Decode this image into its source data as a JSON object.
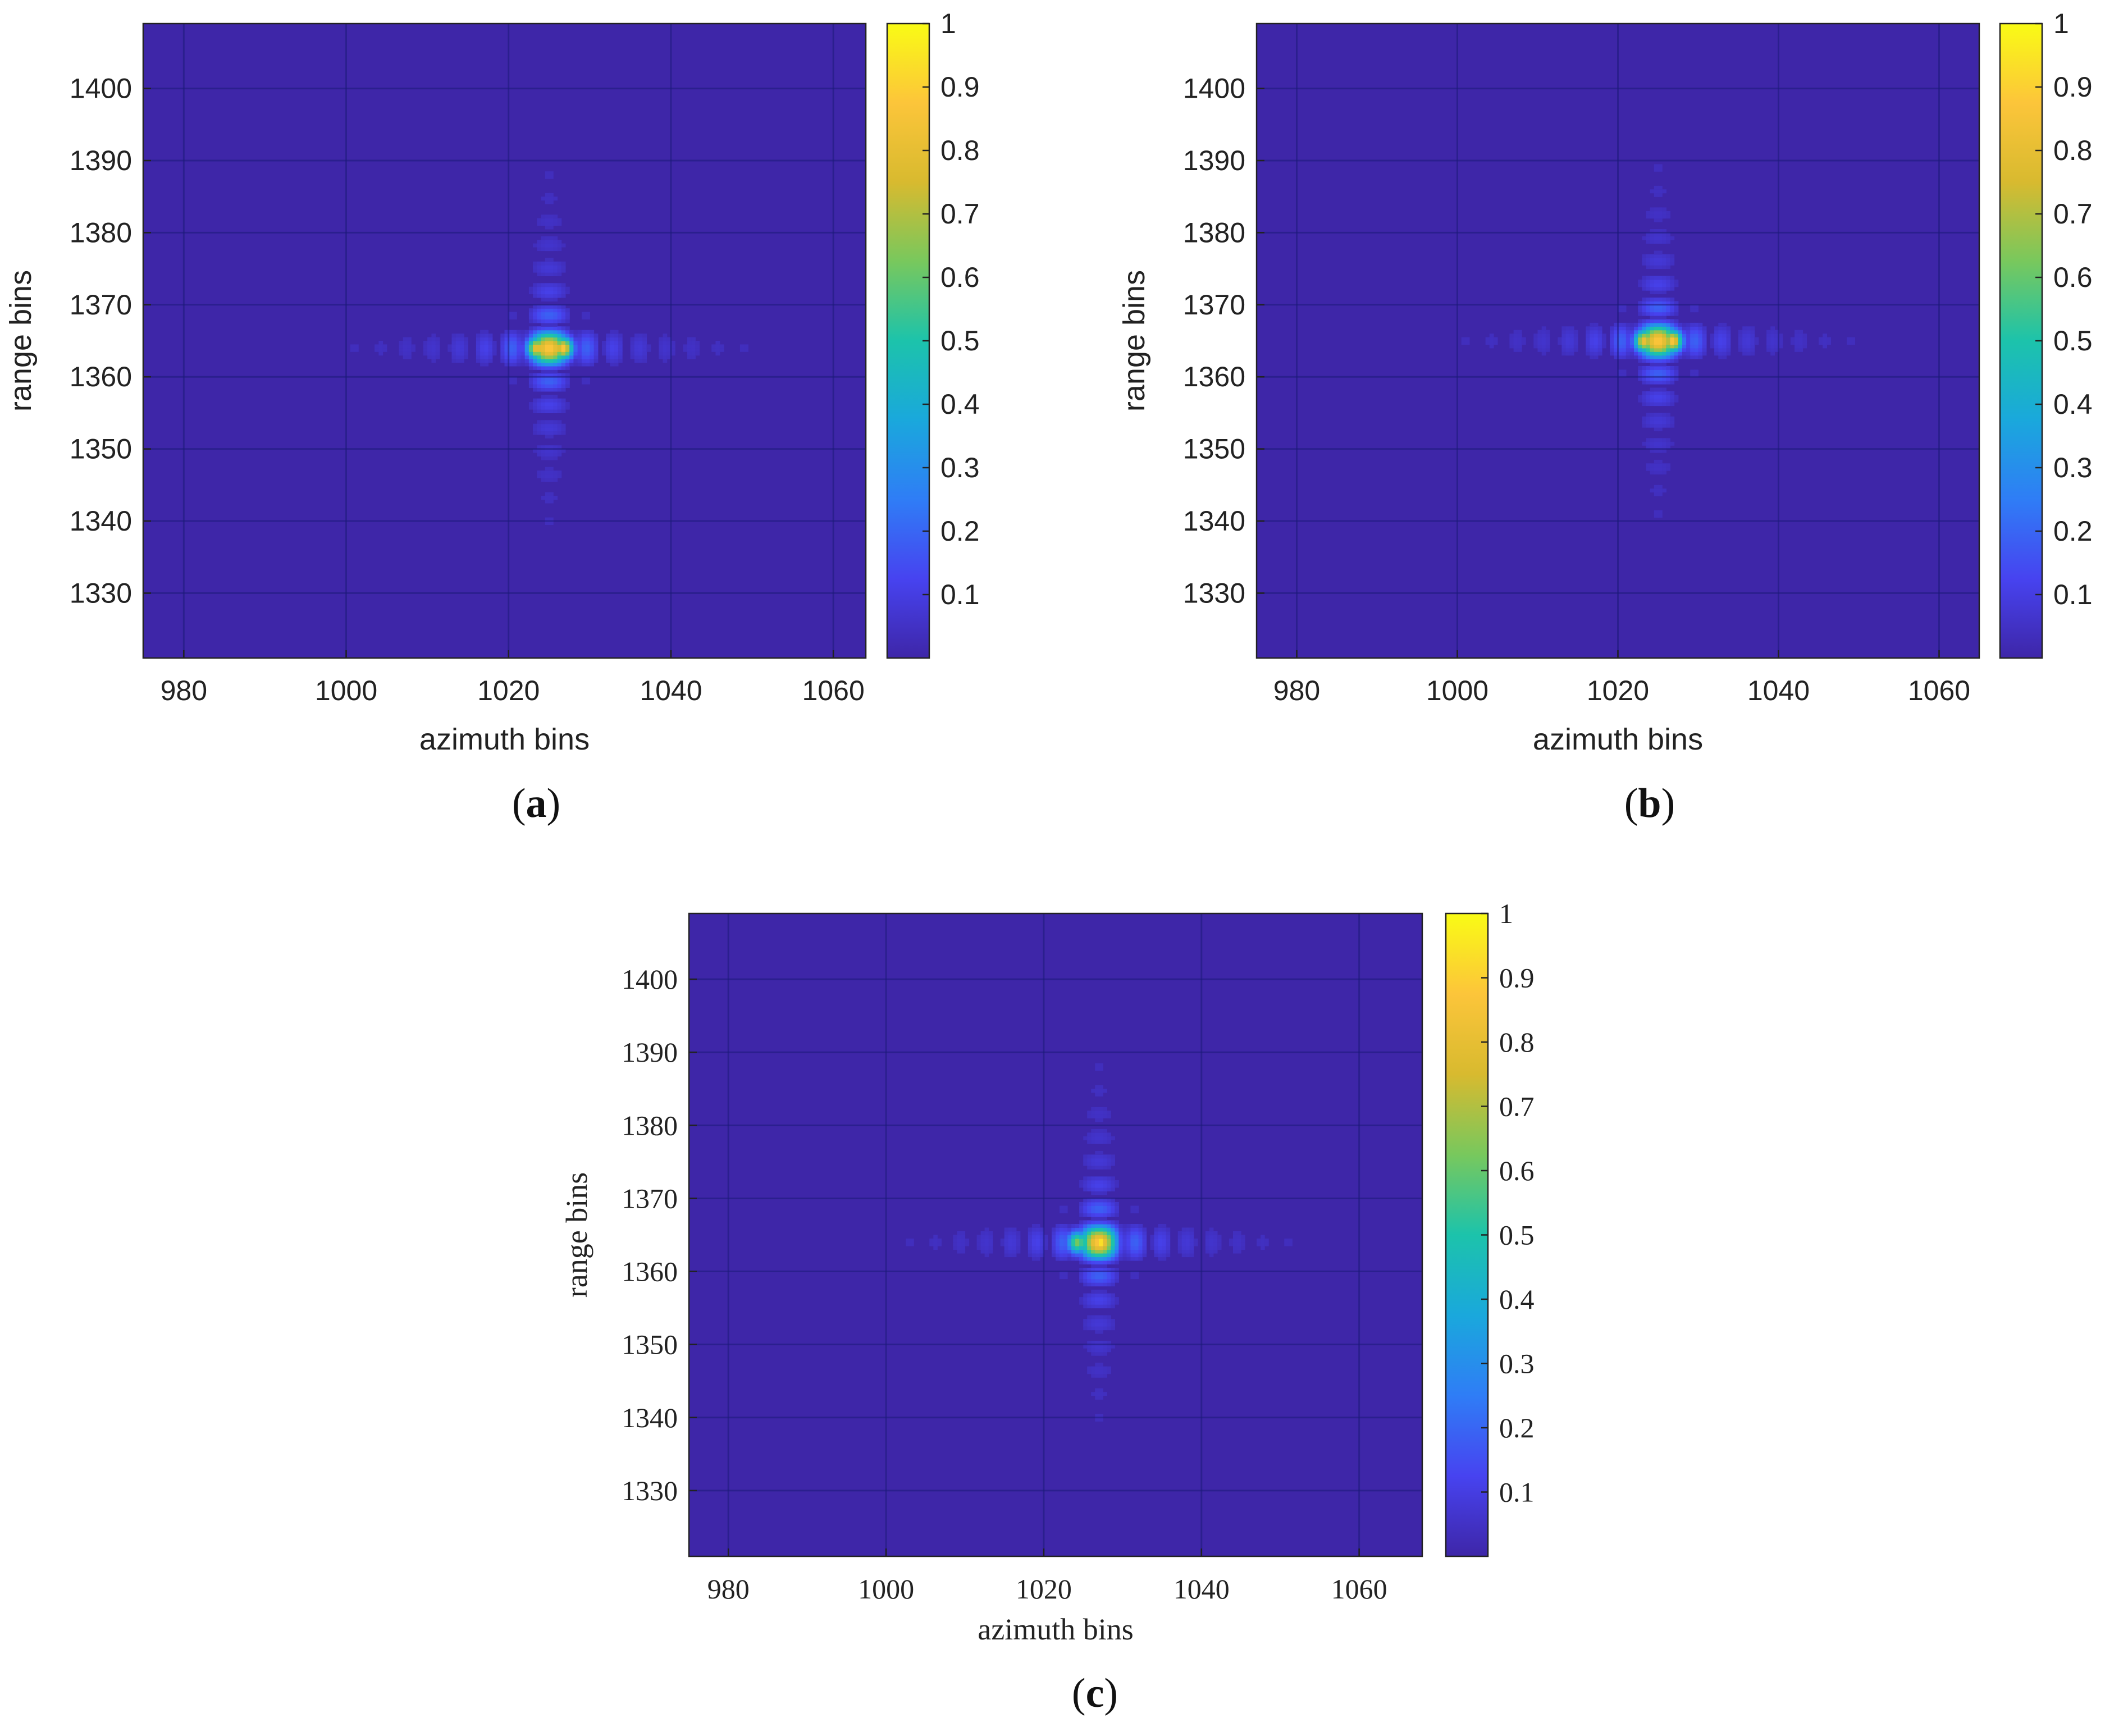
{
  "figure": {
    "panels": [
      {
        "caption": "(a)",
        "caption_letter": "a",
        "font": "sans",
        "xlabel": "azimuth bins",
        "ylabel": "range bins"
      },
      {
        "caption": "(b)",
        "caption_letter": "b",
        "font": "sans",
        "xlabel": "azimuth bins",
        "ylabel": "range bins"
      },
      {
        "caption": "(c)",
        "caption_letter": "c",
        "font": "serif",
        "xlabel": "azimuth bins",
        "ylabel": "range bins"
      }
    ]
  },
  "colors": {
    "colormap": [
      "#3e26a8",
      "#4743f0",
      "#2f7df6",
      "#1aa8dc",
      "#1cc3ab",
      "#78c85d",
      "#d8ba2f",
      "#fcc53a",
      "#f9fb15"
    ],
    "background": "#3e26a8"
  },
  "chart_data": [
    {
      "type": "heatmap",
      "title": "(a)",
      "xlabel": "azimuth bins",
      "ylabel": "range bins",
      "xlim": [
        975,
        1064
      ],
      "ylim": [
        1321,
        1409
      ],
      "xticks": [
        980,
        1000,
        1020,
        1040,
        1060
      ],
      "yticks": [
        1330,
        1340,
        1350,
        1360,
        1370,
        1380,
        1390,
        1400
      ],
      "colorbar": {
        "clim": [
          0,
          1
        ],
        "ticks": [
          0.1,
          0.2,
          0.3,
          0.4,
          0.5,
          0.6,
          0.7,
          0.8,
          0.9,
          1
        ],
        "tick_labels": [
          "0.1",
          "0.2",
          "0.3",
          "0.4",
          "0.5",
          "0.6",
          "0.7",
          "0.8",
          "0.9",
          "1"
        ]
      },
      "peak": {
        "azimuth": 1025,
        "range": 1364,
        "value": 1.0
      },
      "sub_peaks": [
        {
          "azimuth": 1023.5,
          "range": 1364,
          "value": 0.85
        },
        {
          "azimuth": 1026.7,
          "range": 1364,
          "value": 0.9
        }
      ],
      "background_value": 0.0
    },
    {
      "type": "heatmap",
      "title": "(b)",
      "xlabel": "azimuth bins",
      "ylabel": "range bins",
      "xlim": [
        975,
        1065
      ],
      "ylim": [
        1321,
        1409
      ],
      "xticks": [
        980,
        1000,
        1020,
        1040,
        1060
      ],
      "yticks": [
        1330,
        1340,
        1350,
        1360,
        1370,
        1380,
        1390,
        1400
      ],
      "colorbar": {
        "clim": [
          0,
          1
        ],
        "ticks": [
          0.1,
          0.2,
          0.3,
          0.4,
          0.5,
          0.6,
          0.7,
          0.8,
          0.9,
          1
        ],
        "tick_labels": [
          "0.1",
          "0.2",
          "0.3",
          "0.4",
          "0.5",
          "0.6",
          "0.7",
          "0.8",
          "0.9",
          "1"
        ]
      },
      "peak": {
        "azimuth": 1025,
        "range": 1365,
        "value": 1.0
      },
      "sub_peaks": [
        {
          "azimuth": 1023.3,
          "range": 1365,
          "value": 0.85
        },
        {
          "azimuth": 1026.8,
          "range": 1365,
          "value": 0.9
        }
      ],
      "background_value": 0.0
    },
    {
      "type": "heatmap",
      "title": "(c)",
      "xlabel": "azimuth bins",
      "ylabel": "range bins",
      "xlim": [
        975,
        1068
      ],
      "ylim": [
        1321,
        1409
      ],
      "xticks": [
        980,
        1000,
        1020,
        1040,
        1060
      ],
      "yticks": [
        1330,
        1340,
        1350,
        1360,
        1370,
        1380,
        1390,
        1400
      ],
      "colorbar": {
        "clim": [
          0,
          1
        ],
        "ticks": [
          0.1,
          0.2,
          0.3,
          0.4,
          0.5,
          0.6,
          0.7,
          0.8,
          0.9,
          1
        ],
        "tick_labels": [
          "0.1",
          "0.2",
          "0.3",
          "0.4",
          "0.5",
          "0.6",
          "0.7",
          "0.8",
          "0.9",
          "1"
        ]
      },
      "peak": {
        "azimuth": 1027,
        "range": 1364,
        "value": 1.0
      },
      "sub_peaks": [
        {
          "azimuth": 1024.3,
          "range": 1364,
          "value": 0.65
        },
        {
          "azimuth": 1027.2,
          "range": 1364,
          "value": 0.98
        }
      ],
      "background_value": 0.0
    }
  ]
}
